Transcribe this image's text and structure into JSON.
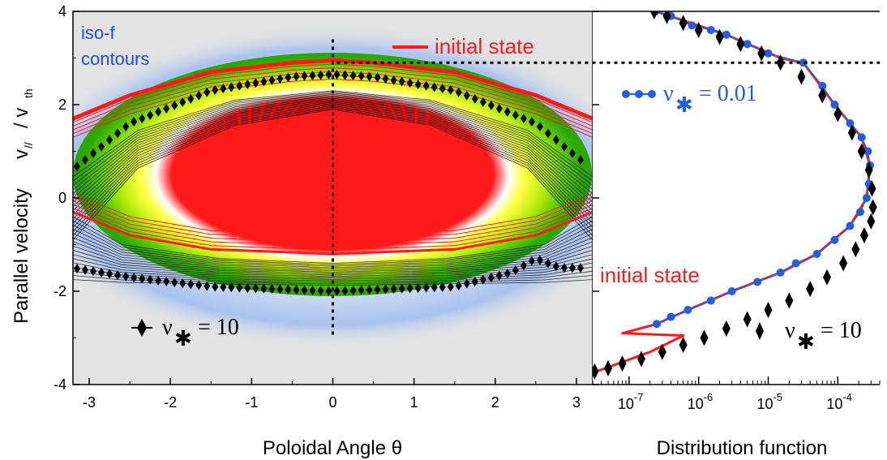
{
  "colors": {
    "background_panel": "#e3e3e3",
    "contour": "#000000",
    "initial_state": "#ff1a1a",
    "low_collisionality": "#1e5fe6",
    "iso_f_label": "#1a4fe0",
    "colormap": [
      "#e3e3e3",
      "#a8c2ee",
      "#ffffff",
      "#ffff40",
      "#7ee000",
      "#2aa800",
      "#ff1a1a"
    ]
  },
  "chart_data": [
    {
      "type": "heatmap",
      "xlabel": "Poloidal Angle  θ",
      "ylabel_main": "Parallel velocity",
      "ylabel_sub": "v// / vth",
      "ylabel_v": "v",
      "ylabel_v_sub": "//",
      "ylabel_slash": "/ v",
      "ylabel_th_sub": "th",
      "xlim": [
        -3.2,
        3.2
      ],
      "ylim": [
        -4,
        4
      ],
      "xticks": [
        -3,
        -2,
        -1,
        0,
        1,
        2,
        3
      ],
      "yticks": [
        -4,
        -2,
        0,
        2,
        4
      ],
      "grid": false,
      "annotations": {
        "iso_f_line1": "iso-f",
        "iso_f_line2": "contours",
        "initial_state_legend": "initial state",
        "nu_label_prefix": "ν",
        "nu_label_sub": "✱",
        "nu_label_value": "= 10"
      },
      "reference_lines": {
        "vertical_dotted_x": 0,
        "vertical_dotted_y": [
          -3.0,
          3.4
        ],
        "horizontal_dotted_y": 2.9
      },
      "initial_state_separatrix": {
        "upper_branch": [
          [
            -3.2,
            1.7
          ],
          [
            -2.5,
            2.2
          ],
          [
            -1.5,
            2.7
          ],
          [
            -0.5,
            2.9
          ],
          [
            0,
            2.95
          ],
          [
            0.5,
            2.9
          ],
          [
            1.5,
            2.7
          ],
          [
            2.5,
            2.2
          ],
          [
            3.2,
            1.7
          ]
        ],
        "lower_branch": [
          [
            -3.2,
            -0.3
          ],
          [
            -2.5,
            -0.8
          ],
          [
            -1.5,
            -1.1
          ],
          [
            0,
            -1.2
          ],
          [
            1.5,
            -1.1
          ],
          [
            2.5,
            -0.8
          ],
          [
            3.2,
            -0.3
          ]
        ]
      },
      "trapped_region_nu10": {
        "upper_branch": [
          [
            -3.2,
            0.6
          ],
          [
            -2.5,
            1.6
          ],
          [
            -1.5,
            2.3
          ],
          [
            -0.5,
            2.6
          ],
          [
            0,
            2.65
          ],
          [
            0.5,
            2.6
          ],
          [
            1.5,
            2.3
          ],
          [
            2.5,
            1.6
          ],
          [
            3.2,
            0.6
          ]
        ],
        "lower_branch": [
          [
            -3.2,
            -1.5
          ],
          [
            -2.5,
            -1.7
          ],
          [
            -1.5,
            -1.9
          ],
          [
            0,
            -2.0
          ],
          [
            1.5,
            -1.9
          ],
          [
            2.2,
            -1.6
          ],
          [
            2.5,
            -1.3
          ],
          [
            2.8,
            -1.5
          ],
          [
            3.2,
            -1.5
          ]
        ]
      }
    },
    {
      "type": "line",
      "xlabel": "Distribution function",
      "xscale": "log",
      "xlim": [
        3e-08,
        0.0004
      ],
      "ylim": [
        -4,
        4
      ],
      "xticks": [
        1e-07,
        1e-06,
        1e-05,
        0.0001
      ],
      "xtick_labels": [
        {
          "base": "10",
          "exp": "-7"
        },
        {
          "base": "10",
          "exp": "-6"
        },
        {
          "base": "10",
          "exp": "-5"
        },
        {
          "base": "10",
          "exp": "-4"
        }
      ],
      "grid": false,
      "annotations": {
        "initial_state_label": "initial state",
        "nu_low_prefix": "ν",
        "nu_low_sub": "✱",
        "nu_low_value": "= 0.01",
        "nu_high_prefix": "ν",
        "nu_high_sub": "✱",
        "nu_high_value": "= 10"
      },
      "series": [
        {
          "name": "initial state",
          "style": "line",
          "points": [
            [
              2.4e-07,
              4.0
            ],
            [
              2.5e-06,
              3.5
            ],
            [
              1.5e-05,
              3.0
            ],
            [
              3.2e-05,
              2.9
            ],
            [
              9e-05,
              2.0
            ],
            [
              0.00022,
              1.3
            ],
            [
              0.00029,
              0.7
            ],
            [
              0.00026,
              0.0
            ],
            [
              0.00015,
              -0.6
            ],
            [
              5e-05,
              -1.2
            ],
            [
              1.5e-05,
              -1.6
            ],
            [
              3e-06,
              -2.0
            ],
            [
              7e-07,
              -2.4
            ],
            [
              2.5e-07,
              -2.7
            ],
            [
              8e-08,
              -2.9
            ],
            [
              6e-07,
              -2.95
            ],
            [
              2e-07,
              -3.3
            ],
            [
              3e-08,
              -3.75
            ]
          ]
        },
        {
          "name": "ν✱ = 0.01",
          "style": "circles",
          "points": [
            [
              2.4e-07,
              4.0
            ],
            [
              4e-07,
              3.9
            ],
            [
              8e-07,
              3.7
            ],
            [
              1.5e-06,
              3.6
            ],
            [
              2.5e-06,
              3.5
            ],
            [
              5e-06,
              3.3
            ],
            [
              1e-05,
              3.1
            ],
            [
              3.2e-05,
              2.9
            ],
            [
              6e-05,
              2.4
            ],
            [
              9e-05,
              2.0
            ],
            [
              0.00015,
              1.6
            ],
            [
              0.00022,
              1.3
            ],
            [
              0.00027,
              1.0
            ],
            [
              0.00029,
              0.7
            ],
            [
              0.00028,
              0.3
            ],
            [
              0.00026,
              0.0
            ],
            [
              0.00021,
              -0.3
            ],
            [
              0.00015,
              -0.6
            ],
            [
              9e-05,
              -0.9
            ],
            [
              5e-05,
              -1.2
            ],
            [
              2.5e-05,
              -1.4
            ],
            [
              1.5e-05,
              -1.6
            ],
            [
              7e-06,
              -1.8
            ],
            [
              3e-06,
              -2.0
            ],
            [
              1.5e-06,
              -2.2
            ],
            [
              7e-07,
              -2.4
            ],
            [
              4e-07,
              -2.55
            ],
            [
              2.5e-07,
              -2.7
            ]
          ]
        },
        {
          "name": "ν✱ = 10",
          "style": "diamonds",
          "points": [
            [
              2.3e-07,
              4.0
            ],
            [
              3.5e-07,
              3.9
            ],
            [
              6e-07,
              3.75
            ],
            [
              1e-06,
              3.6
            ],
            [
              2e-06,
              3.45
            ],
            [
              4e-06,
              3.3
            ],
            [
              8e-06,
              3.1
            ],
            [
              1.5e-05,
              2.9
            ],
            [
              3e-05,
              2.6
            ],
            [
              6e-05,
              2.2
            ],
            [
              0.0001,
              1.8
            ],
            [
              0.00016,
              1.4
            ],
            [
              0.00022,
              1.0
            ],
            [
              0.00028,
              0.6
            ],
            [
              0.00031,
              0.2
            ],
            [
              0.00032,
              -0.2
            ],
            [
              0.0003,
              -0.5
            ],
            [
              0.00024,
              -0.8
            ],
            [
              0.00018,
              -1.1
            ],
            [
              0.00012,
              -1.4
            ],
            [
              7e-05,
              -1.7
            ],
            [
              4e-05,
              -1.95
            ],
            [
              2e-05,
              -2.2
            ],
            [
              1e-05,
              -2.4
            ],
            [
              5e-06,
              -2.6
            ],
            [
              2.5e-06,
              -2.8
            ],
            [
              1.2e-06,
              -3.0
            ],
            [
              6e-07,
              -3.15
            ],
            [
              3e-07,
              -3.3
            ],
            [
              1.5e-07,
              -3.45
            ],
            [
              8e-08,
              -3.55
            ],
            [
              5e-08,
              -3.65
            ],
            [
              3.2e-08,
              -3.72
            ]
          ]
        }
      ]
    }
  ]
}
